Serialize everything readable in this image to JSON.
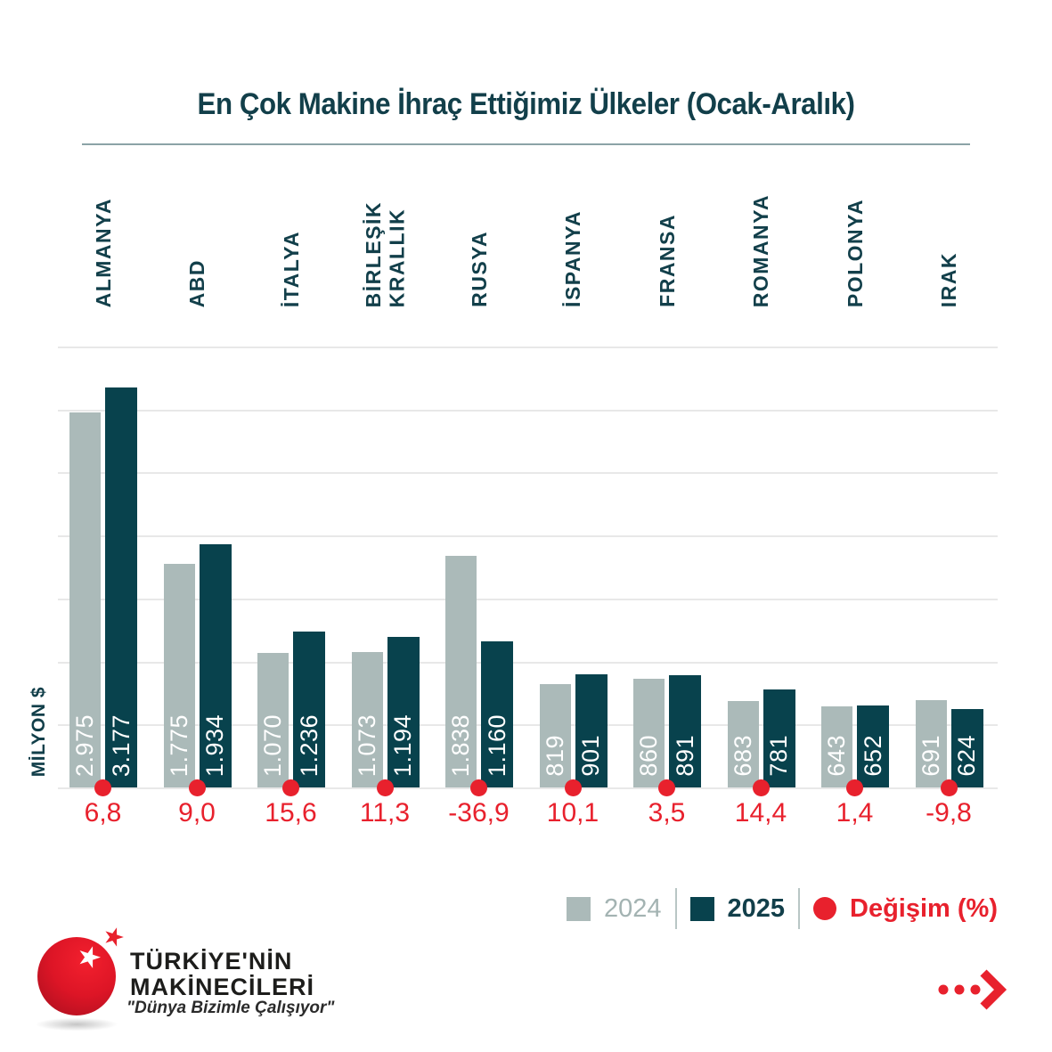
{
  "title": "En Çok Makine İhraç Ettiğimiz Ülkeler (Ocak-Aralık)",
  "chart_data": {
    "type": "bar",
    "categories": [
      "ALMANYA",
      "ABD",
      "İTALYA",
      "BİRLEŞİK KRALLIK",
      "RUSYA",
      "İSPANYA",
      "FRANSA",
      "ROMANYA",
      "POLONYA",
      "IRAK"
    ],
    "series": [
      {
        "name": "2024",
        "values": [
          2975,
          1775,
          1070,
          1073,
          1838,
          819,
          860,
          683,
          643,
          691
        ]
      },
      {
        "name": "2025",
        "values": [
          3177,
          1934,
          1236,
          1194,
          1160,
          901,
          891,
          781,
          652,
          624
        ]
      }
    ],
    "change_percent": [
      "6,8",
      "9,0",
      "15,6",
      "11,3",
      "-36,9",
      "10,1",
      "3,5",
      "14,4",
      "1,4",
      "-9,8"
    ],
    "title": "En Çok Makine İhraç Ettiğimiz Ülkeler (Ocak-Aralık)",
    "xlabel": "",
    "ylabel": "MİLYON $",
    "ylim": [
      0,
      3500
    ],
    "grid": true,
    "gridline_step": 500,
    "legend_position": "bottom-right",
    "legend": [
      "2024",
      "2025",
      "Değişim (%)"
    ]
  },
  "axis": {
    "ylabel": "MİLYON $"
  },
  "legend": {
    "label_2024": "2024",
    "label_2025": "2025",
    "label_change": "Değişim (%)"
  },
  "footer": {
    "brand_line1": "TÜRKİYE'NİN",
    "brand_line2": "MAKİNECİLERİ",
    "brand_tagline": "\"Dünya Bizimle Çalışıyor\""
  },
  "icons": {
    "logo_star": "★",
    "next_arrow": "next-arrow-icon"
  },
  "colors": {
    "bar_2024": "#abbab9",
    "bar_2025": "#08424d",
    "accent_red": "#e8212d",
    "text_dark": "#123f4a",
    "legend_text_2024": "#a3b3b2",
    "gridline": "#e8e8e8"
  }
}
